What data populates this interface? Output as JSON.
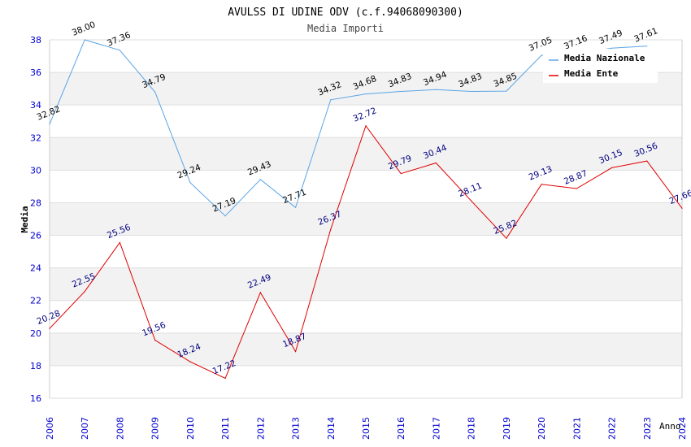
{
  "chart_data": {
    "type": "line",
    "title": "AVULSS DI UDINE ODV (c.f.94068090300)",
    "subtitle": "Media Importi",
    "xlabel": "Anno",
    "ylabel": "Media",
    "x": [
      2006,
      2007,
      2008,
      2009,
      2010,
      2011,
      2012,
      2013,
      2014,
      2015,
      2016,
      2017,
      2018,
      2019,
      2020,
      2021,
      2022,
      2023,
      2024
    ],
    "ylim": [
      16,
      38
    ],
    "yticks": [
      16,
      18,
      20,
      22,
      24,
      26,
      28,
      30,
      32,
      34,
      36,
      38
    ],
    "grid": "horizontal alternating bands",
    "legend": "top-right",
    "series": [
      {
        "name": "Media Nazionale",
        "color": "#5aa5e6",
        "values": [
          32.82,
          38.0,
          37.36,
          34.79,
          29.24,
          27.19,
          29.43,
          27.71,
          34.32,
          34.68,
          34.83,
          34.94,
          34.83,
          34.85,
          37.05,
          37.16,
          37.49,
          37.61,
          null
        ],
        "labels": [
          "32.82",
          "38.00",
          "37.36",
          "34.79",
          "29.24",
          "27.19",
          "29.43",
          "27.71",
          "34.32",
          "34.68",
          "34.83",
          "34.94",
          "34.83",
          "34.85",
          "37.05",
          "37.16",
          "37.49",
          "37.61",
          ""
        ]
      },
      {
        "name": "Media Ente",
        "color": "#e00000",
        "values": [
          20.28,
          22.55,
          25.56,
          19.56,
          18.24,
          17.22,
          22.49,
          18.87,
          26.37,
          32.72,
          29.79,
          30.44,
          28.11,
          25.82,
          29.13,
          28.87,
          30.15,
          30.56,
          27.66
        ],
        "labels": [
          "20.28",
          "22.55",
          "25.56",
          "19.56",
          "18.24",
          "17.22",
          "22.49",
          "18.87",
          "26.37",
          "32.72",
          "29.79",
          "30.44",
          "28.11",
          "25.82",
          "29.13",
          "28.87",
          "30.15",
          "30.56",
          "27.66"
        ]
      }
    ]
  },
  "colors": {
    "tick_label": "#0000cc",
    "band": "#f2f2f2",
    "grid": "#dddddd",
    "nazionale_label": "#000000",
    "ente_label": "#000080"
  }
}
